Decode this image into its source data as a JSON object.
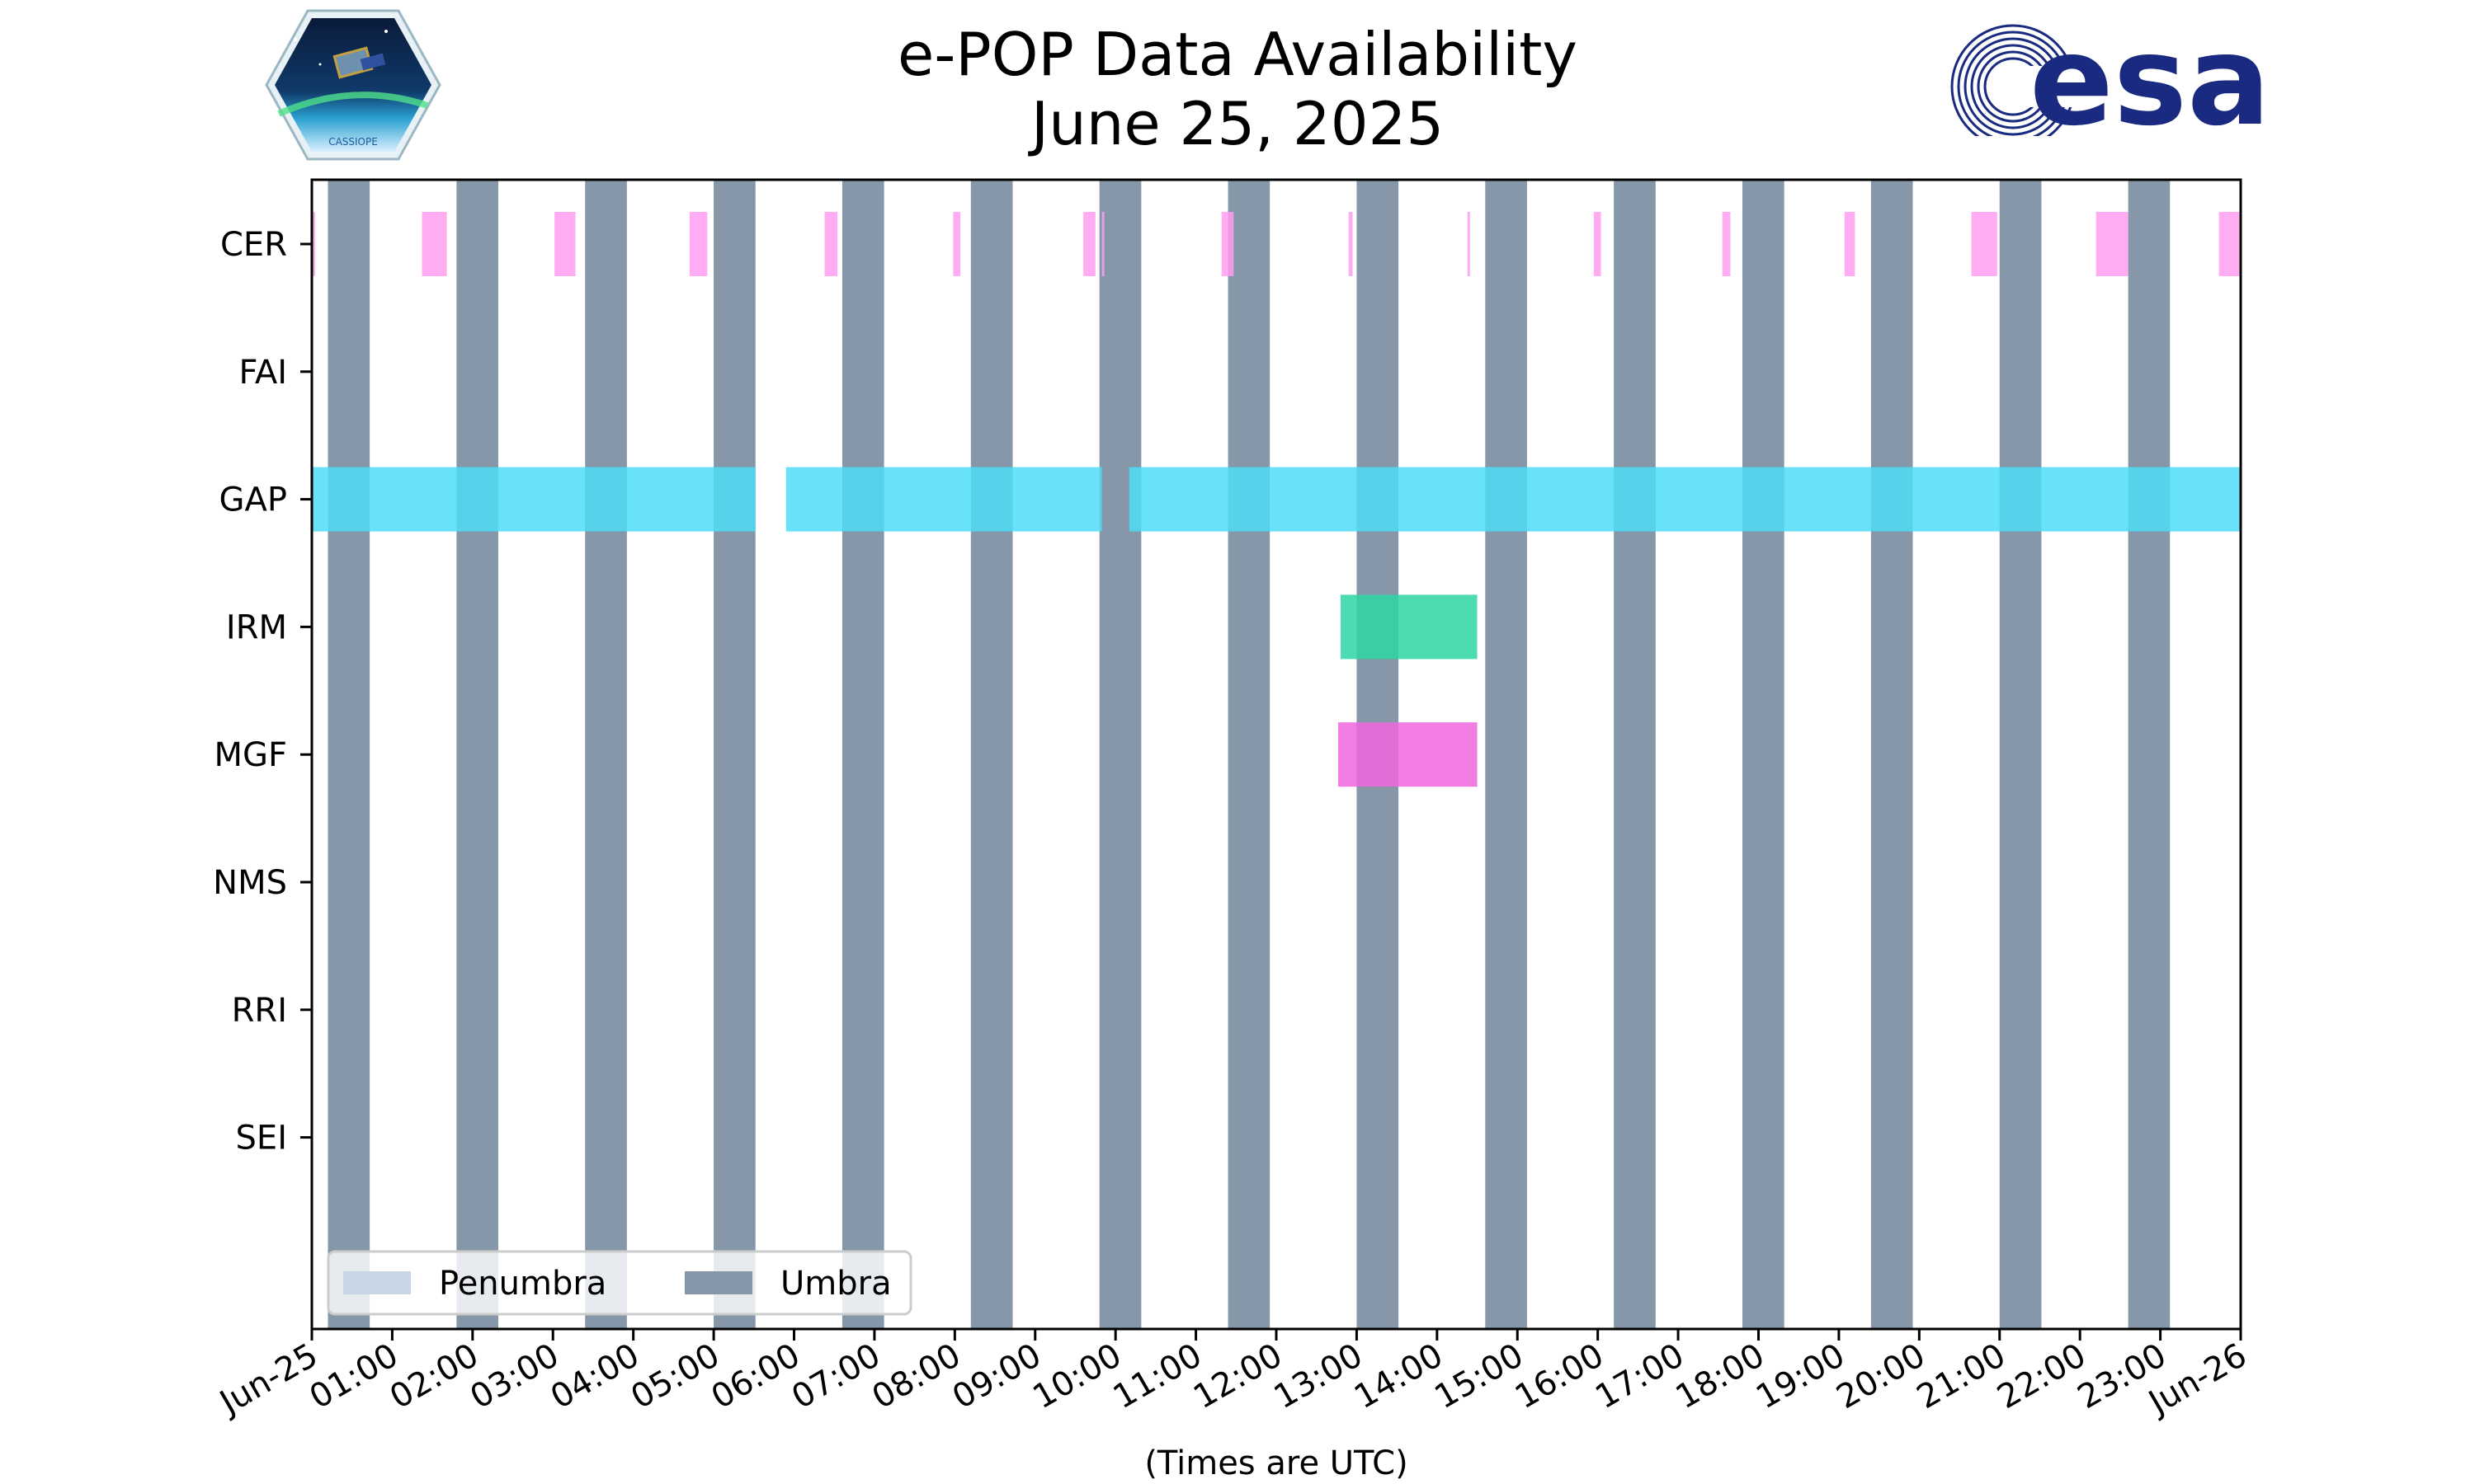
{
  "title_lines": [
    "e-POP Data Availability",
    "June 25, 2025"
  ],
  "logos": {
    "left": {
      "name": "CASSIOPE mission patch",
      "text": "CASSIOPE"
    },
    "right": {
      "name": "ESA logo",
      "text": "esa",
      "color": "#1a2a80"
    }
  },
  "colors": {
    "umbra": "#8597a8",
    "penumbra": "#c8d6e5",
    "cer": "#ff9ef0",
    "gap": "#4fdcf7",
    "irm": "#2ed6a3",
    "mgf": "#ee66de"
  },
  "chart_data": {
    "type": "timeline",
    "xlabel": "(Times are UTC)",
    "x_range_hours": [
      0,
      24
    ],
    "x_ticks": [
      "Jun-25",
      "01:00",
      "02:00",
      "03:00",
      "04:00",
      "05:00",
      "06:00",
      "07:00",
      "08:00",
      "09:00",
      "10:00",
      "11:00",
      "12:00",
      "13:00",
      "14:00",
      "15:00",
      "16:00",
      "17:00",
      "18:00",
      "19:00",
      "20:00",
      "21:00",
      "22:00",
      "23:00",
      "Jun-26"
    ],
    "instruments": [
      "CER",
      "FAI",
      "GAP",
      "IRM",
      "MGF",
      "NMS",
      "RRI",
      "SEI"
    ],
    "legend": {
      "entries": [
        "Penumbra",
        "Umbra"
      ],
      "location": "lower-left"
    },
    "umbra_intervals_hours": [
      [
        0.2,
        0.72
      ],
      [
        1.8,
        2.32
      ],
      [
        3.4,
        3.92
      ],
      [
        5.0,
        5.52
      ],
      [
        6.6,
        7.12
      ],
      [
        8.2,
        8.72
      ],
      [
        9.8,
        10.32
      ],
      [
        11.4,
        11.92
      ],
      [
        13.0,
        13.52
      ],
      [
        14.6,
        15.12
      ],
      [
        16.2,
        16.72
      ],
      [
        17.8,
        18.32
      ],
      [
        19.4,
        19.92
      ],
      [
        21.0,
        21.52
      ],
      [
        22.6,
        23.12
      ]
    ],
    "series": [
      {
        "name": "CER",
        "color_key": "cer",
        "intervals_hours": [
          [
            0.0,
            0.04
          ],
          [
            1.37,
            1.68
          ],
          [
            3.02,
            3.28
          ],
          [
            4.7,
            4.92
          ],
          [
            6.38,
            6.54
          ],
          [
            7.98,
            8.07
          ],
          [
            9.6,
            9.75
          ],
          [
            9.83,
            9.86
          ],
          [
            11.32,
            11.47
          ],
          [
            12.9,
            12.95
          ],
          [
            14.38,
            14.41
          ],
          [
            15.95,
            16.04
          ],
          [
            17.55,
            17.65
          ],
          [
            19.07,
            19.2
          ],
          [
            20.65,
            20.97
          ],
          [
            22.2,
            22.6
          ],
          [
            23.73,
            24.0
          ]
        ]
      },
      {
        "name": "FAI",
        "color_key": "gap",
        "intervals_hours": []
      },
      {
        "name": "GAP",
        "color_key": "gap",
        "intervals_hours": [
          [
            0.0,
            5.52
          ],
          [
            5.9,
            9.83
          ],
          [
            10.17,
            24.0
          ]
        ]
      },
      {
        "name": "IRM",
        "color_key": "irm",
        "intervals_hours": [
          [
            12.8,
            14.5
          ]
        ]
      },
      {
        "name": "MGF",
        "color_key": "mgf",
        "intervals_hours": [
          [
            12.77,
            14.5
          ]
        ]
      },
      {
        "name": "NMS",
        "color_key": "gap",
        "intervals_hours": []
      },
      {
        "name": "RRI",
        "color_key": "gap",
        "intervals_hours": []
      },
      {
        "name": "SEI",
        "color_key": "gap",
        "intervals_hours": []
      }
    ]
  }
}
